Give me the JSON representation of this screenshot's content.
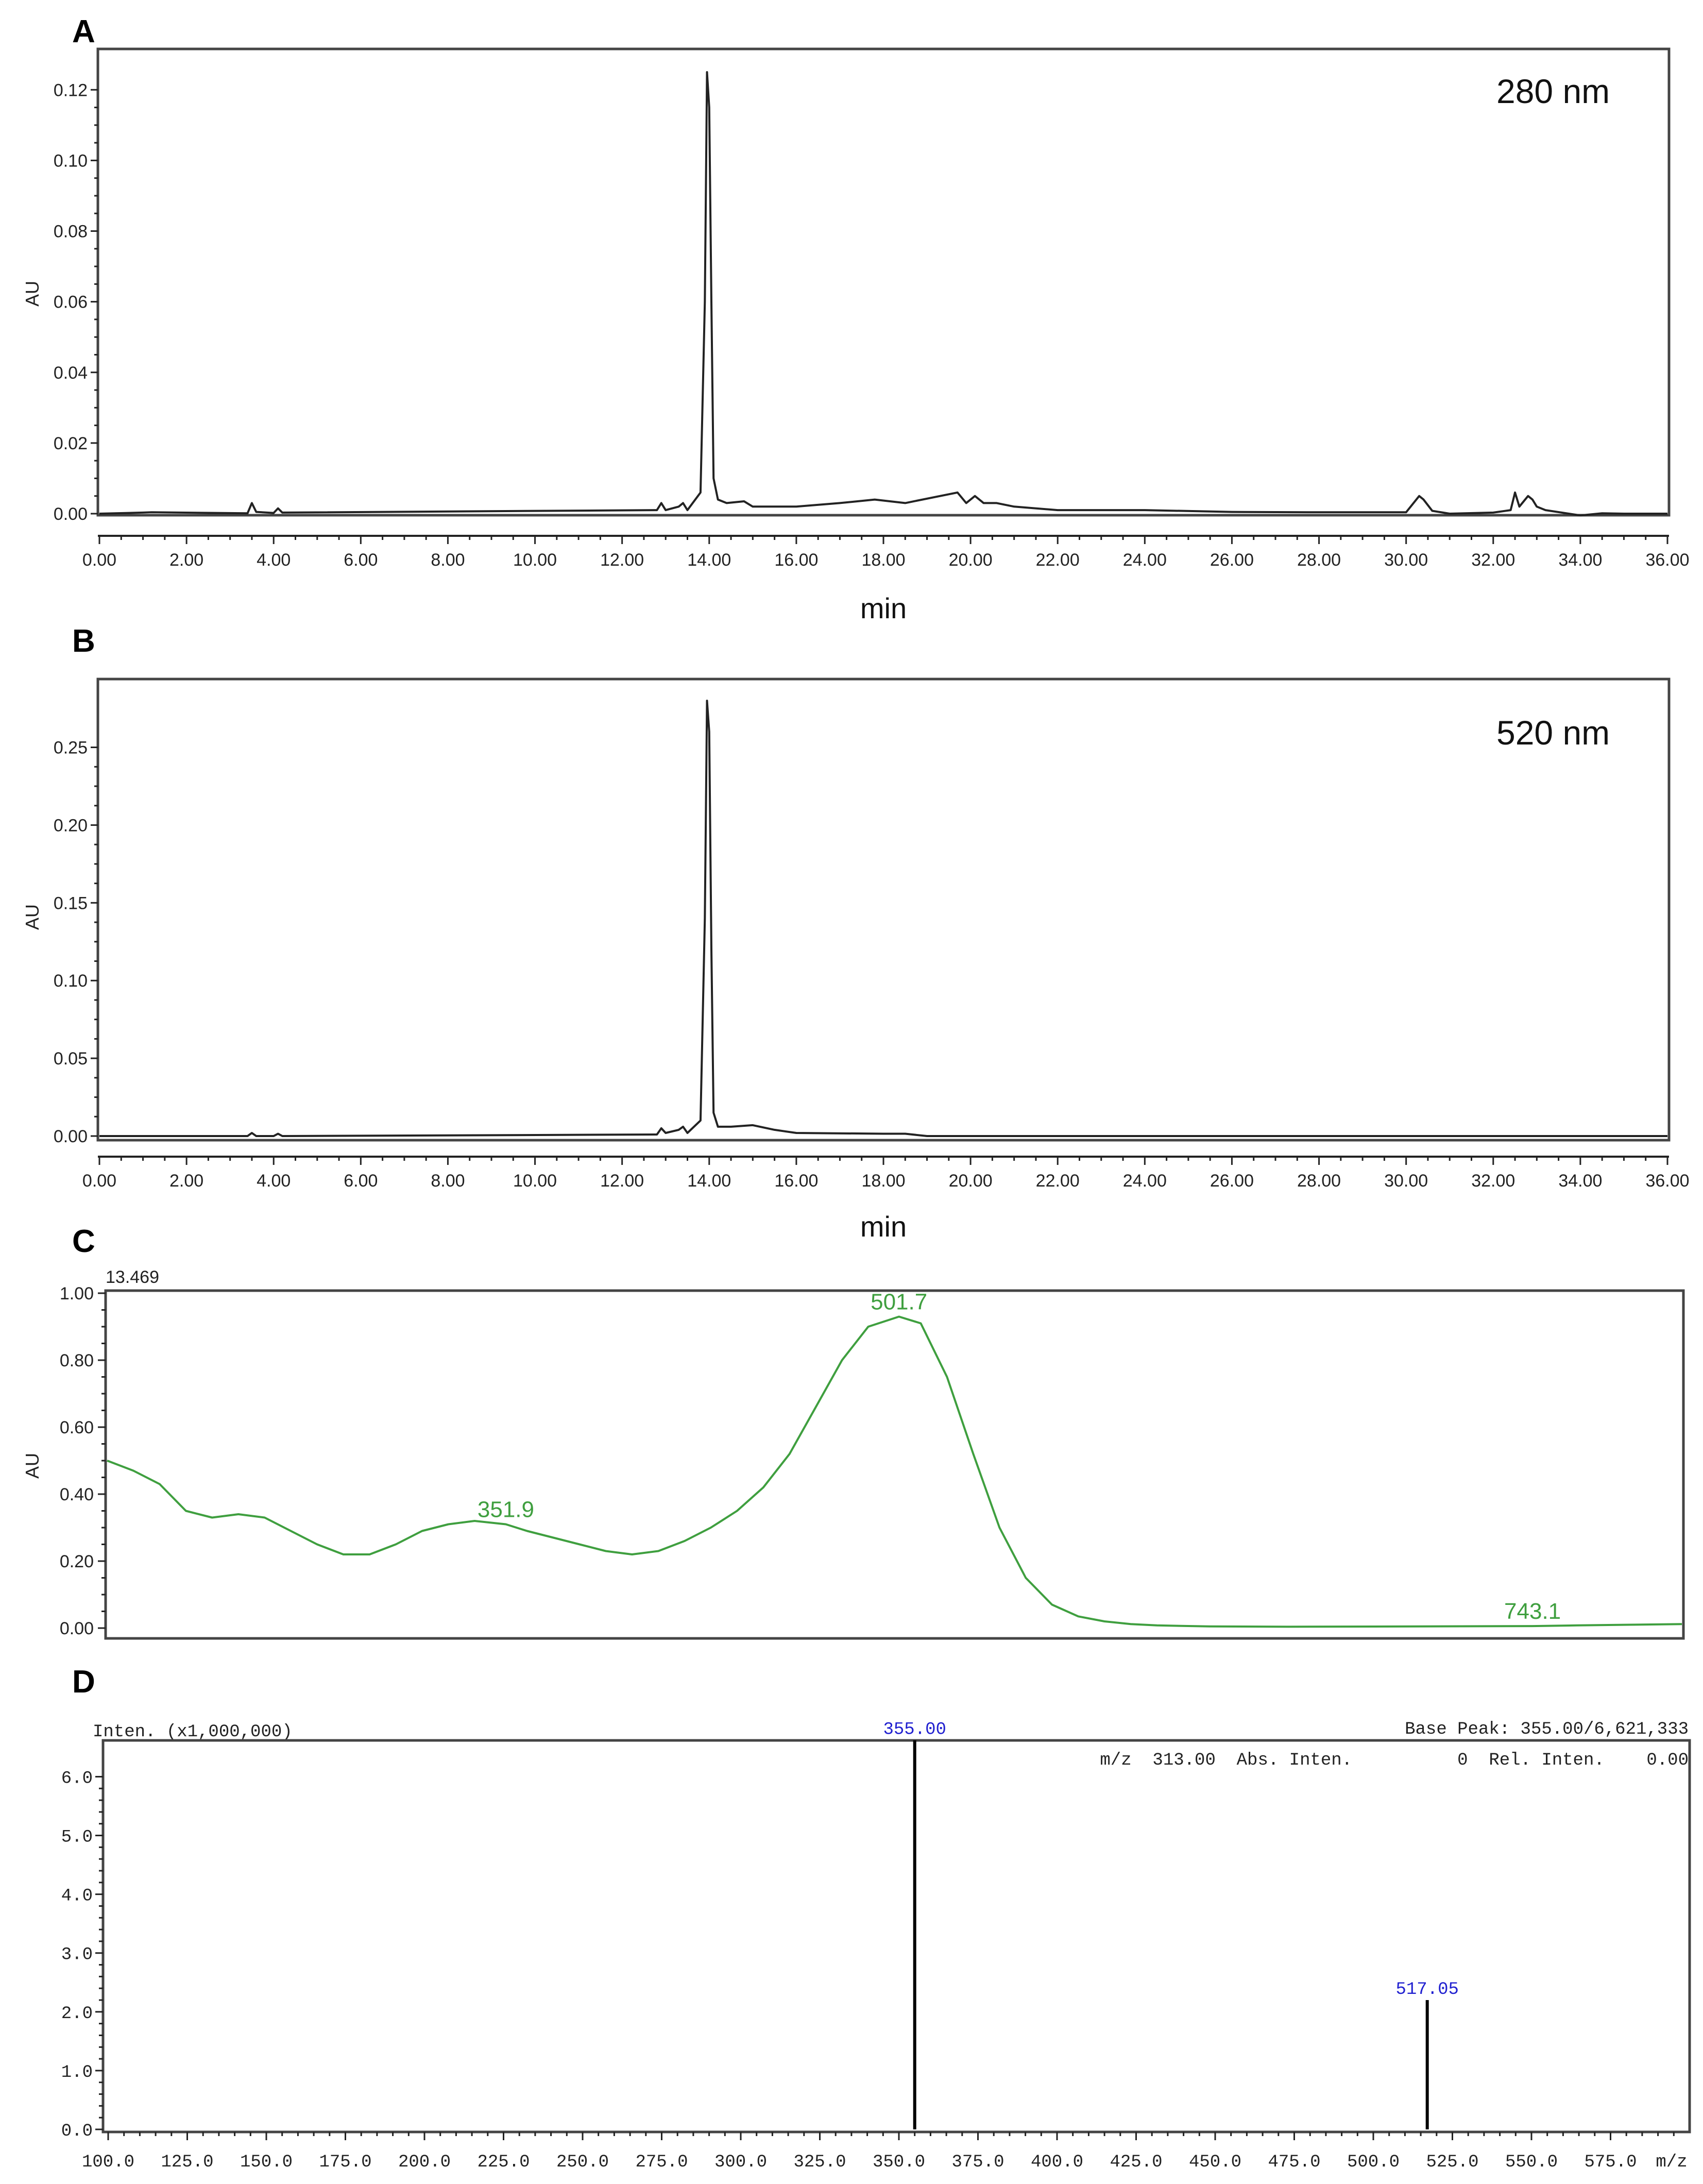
{
  "chart_data": [
    {
      "panel": "A",
      "type": "line",
      "annotation": "280 nm",
      "xlabel": "min",
      "ylabel": "AU",
      "xlim": [
        0,
        36
      ],
      "ylim": [
        0,
        0.125
      ],
      "xticks": [
        "0.00",
        "2.00",
        "4.00",
        "6.00",
        "8.00",
        "10.00",
        "12.00",
        "14.00",
        "16.00",
        "18.00",
        "20.00",
        "22.00",
        "24.00",
        "26.00",
        "28.00",
        "30.00",
        "32.00",
        "34.00",
        "36.00"
      ],
      "yticks": [
        "0.00",
        "0.02",
        "0.04",
        "0.06",
        "0.08",
        "0.10",
        "0.12"
      ],
      "x": [
        0,
        1.0,
        1.2,
        3.4,
        3.5,
        3.6,
        4.0,
        4.1,
        4.2,
        12.8,
        12.9,
        13.0,
        13.3,
        13.4,
        13.5,
        13.8,
        13.9,
        13.95,
        14.0,
        14.05,
        14.1,
        14.2,
        14.4,
        14.8,
        15.0,
        16.0,
        17.0,
        17.8,
        18.5,
        19.7,
        19.9,
        20.1,
        20.3,
        20.6,
        21.0,
        22.0,
        24.0,
        26.0,
        28.0,
        30.0,
        30.3,
        30.4,
        30.6,
        31.0,
        32.0,
        32.4,
        32.5,
        32.6,
        32.8,
        32.9,
        33.0,
        33.2,
        34.0,
        34.5,
        35.0,
        36.0
      ],
      "y": [
        0.0,
        0.0003,
        0.0004,
        0.0001,
        0.003,
        0.0005,
        0.0002,
        0.0015,
        0.0003,
        0.001,
        0.003,
        0.001,
        0.002,
        0.003,
        0.001,
        0.006,
        0.06,
        0.125,
        0.115,
        0.06,
        0.01,
        0.004,
        0.003,
        0.0035,
        0.002,
        0.002,
        0.003,
        0.004,
        0.003,
        0.006,
        0.003,
        0.005,
        0.003,
        0.003,
        0.002,
        0.001,
        0.001,
        0.0005,
        0.0004,
        0.0004,
        0.005,
        0.004,
        0.0008,
        0.0,
        0.0003,
        0.001,
        0.006,
        0.002,
        0.005,
        0.004,
        0.002,
        0.001,
        -0.0005,
        0.0001,
        0.0,
        0.0
      ]
    },
    {
      "panel": "B",
      "type": "line",
      "annotation": "520 nm",
      "xlabel": "min",
      "ylabel": "AU",
      "xlim": [
        0,
        36
      ],
      "ylim": [
        0,
        0.28
      ],
      "xticks": [
        "0.00",
        "2.00",
        "4.00",
        "6.00",
        "8.00",
        "10.00",
        "12.00",
        "14.00",
        "16.00",
        "18.00",
        "20.00",
        "22.00",
        "24.00",
        "26.00",
        "28.00",
        "30.00",
        "32.00",
        "34.00",
        "36.00"
      ],
      "yticks": [
        "0.00",
        "0.05",
        "0.10",
        "0.15",
        "0.20",
        "0.25"
      ],
      "x": [
        0,
        3.4,
        3.5,
        3.6,
        4.0,
        4.1,
        4.2,
        12.8,
        12.9,
        13.0,
        13.3,
        13.4,
        13.5,
        13.8,
        13.9,
        13.95,
        14.0,
        14.05,
        14.1,
        14.2,
        14.5,
        15.0,
        15.5,
        16.0,
        18.0,
        18.5,
        19.0,
        22.0,
        36.0
      ],
      "y": [
        0.0,
        0.0,
        0.002,
        0.0,
        0.0,
        0.0015,
        0.0,
        0.001,
        0.005,
        0.002,
        0.004,
        0.006,
        0.002,
        0.01,
        0.14,
        0.28,
        0.26,
        0.12,
        0.015,
        0.006,
        0.006,
        0.007,
        0.004,
        0.002,
        0.0015,
        0.0015,
        0.0,
        0.0,
        0.0
      ]
    },
    {
      "panel": "C",
      "type": "line",
      "corner_label": "13.469",
      "ylabel": "AU",
      "xlim": [
        200,
        800
      ],
      "ylim": [
        0,
        1.0
      ],
      "yticks": [
        "0.00",
        "0.20",
        "0.40",
        "0.60",
        "0.80",
        "1.00"
      ],
      "peak_labels": [
        {
          "x": 351.9,
          "label": "351.9"
        },
        {
          "x": 501.7,
          "label": "501.7"
        },
        {
          "x": 743.1,
          "label": "743.1"
        }
      ],
      "x": [
        200,
        210,
        220,
        230,
        240,
        250,
        260,
        270,
        280,
        290,
        300,
        310,
        320,
        330,
        340,
        351.9,
        360,
        370,
        380,
        390,
        400,
        410,
        420,
        430,
        440,
        450,
        460,
        470,
        480,
        490,
        501.7,
        510,
        520,
        530,
        540,
        550,
        560,
        570,
        580,
        590,
        600,
        620,
        650,
        700,
        743.1,
        760,
        780,
        800
      ],
      "y": [
        0.5,
        0.47,
        0.43,
        0.35,
        0.33,
        0.34,
        0.33,
        0.29,
        0.25,
        0.22,
        0.22,
        0.25,
        0.29,
        0.31,
        0.32,
        0.31,
        0.29,
        0.27,
        0.25,
        0.23,
        0.22,
        0.23,
        0.26,
        0.3,
        0.35,
        0.42,
        0.52,
        0.66,
        0.8,
        0.9,
        0.93,
        0.91,
        0.75,
        0.52,
        0.3,
        0.15,
        0.07,
        0.035,
        0.02,
        0.012,
        0.008,
        0.005,
        0.004,
        0.005,
        0.006,
        0.008,
        0.01,
        0.012
      ]
    },
    {
      "panel": "D",
      "type": "bar",
      "y_header": "Inten. (x1,000,000)",
      "base_peak": "Base Peak: 355.00/6,621,333",
      "readout": "m/z  313.00  Abs. Inten.          0  Rel. Inten.    0.00",
      "xlabel": "m/z",
      "xlim": [
        100,
        600
      ],
      "ylim": [
        0,
        6.6
      ],
      "xticks": [
        "100.0",
        "125.0",
        "150.0",
        "175.0",
        "200.0",
        "225.0",
        "250.0",
        "275.0",
        "300.0",
        "325.0",
        "350.0",
        "375.0",
        "400.0",
        "425.0",
        "450.0",
        "475.0",
        "500.0",
        "525.0",
        "550.0",
        "575.0"
      ],
      "yticks": [
        "0.0",
        "1.0",
        "2.0",
        "3.0",
        "4.0",
        "5.0",
        "6.0"
      ],
      "peaks": [
        {
          "mz": 355.0,
          "intensity": 6.62,
          "label": "355.00"
        },
        {
          "mz": 517.05,
          "intensity": 2.2,
          "label": "517.05"
        }
      ]
    }
  ],
  "panel_labels": {
    "a": "A",
    "b": "B",
    "c": "C",
    "d": "D"
  }
}
